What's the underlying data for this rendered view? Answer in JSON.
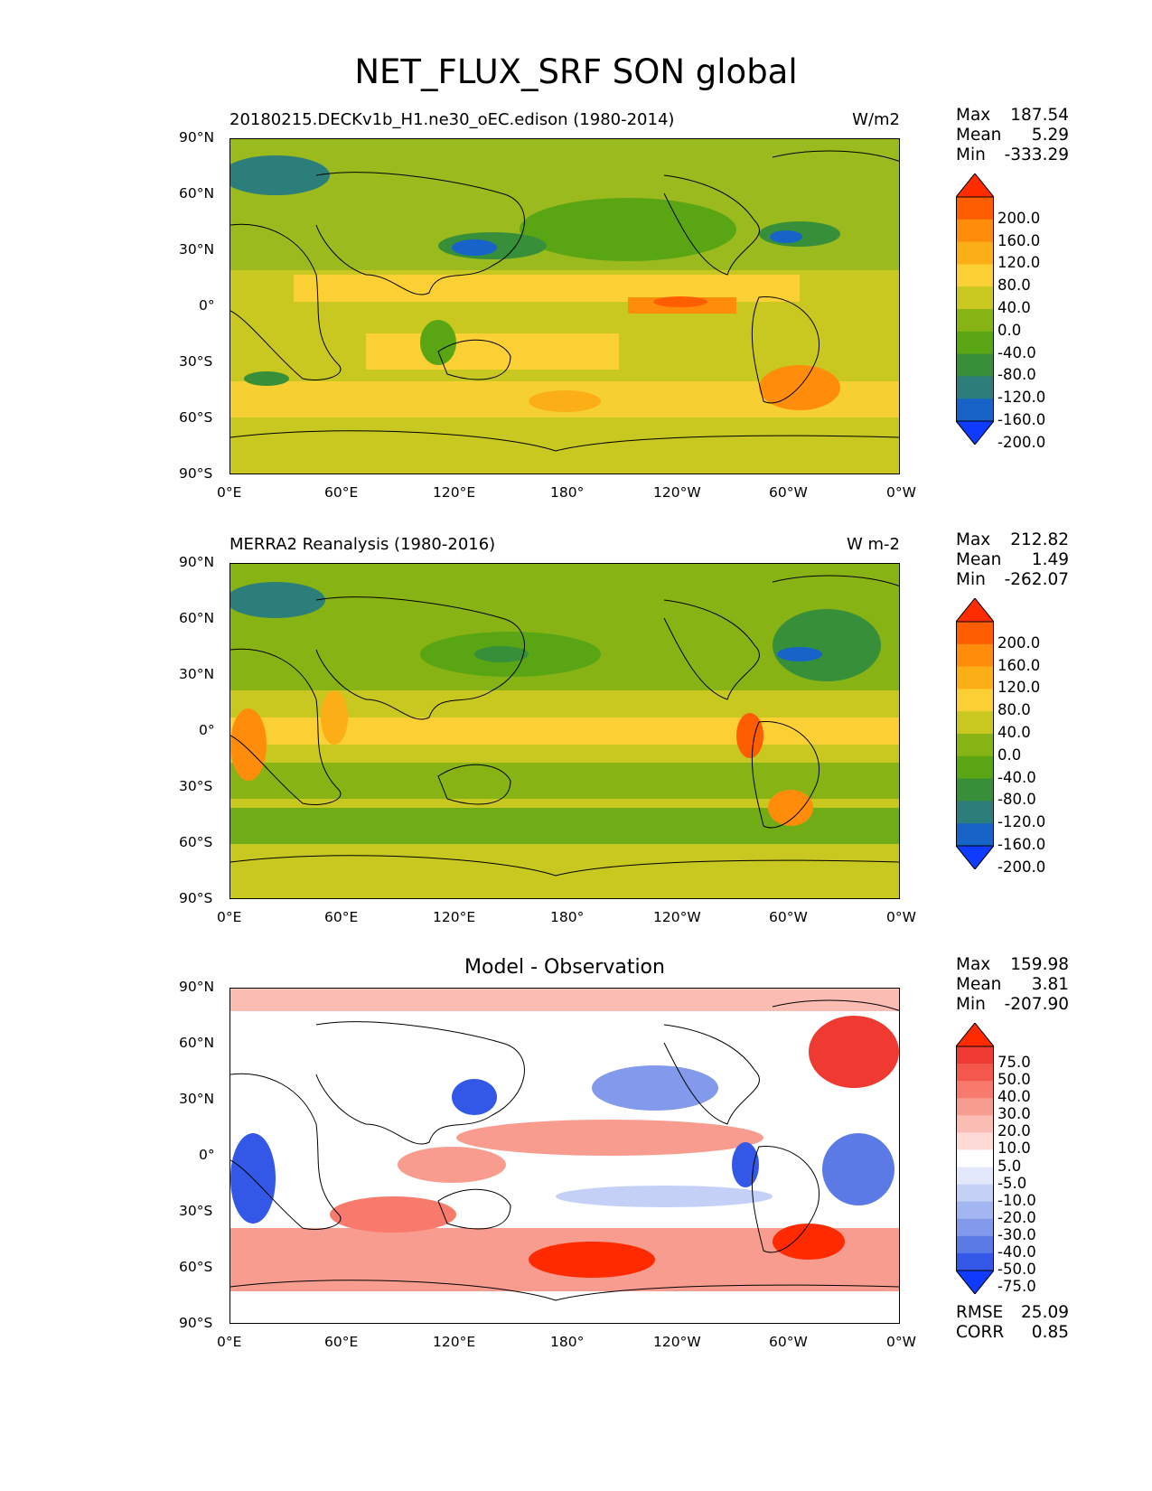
{
  "title": "NET_FLUX_SRF SON global",
  "axes": {
    "lat_ticks": [
      "90°N",
      "60°N",
      "30°N",
      "0°",
      "30°S",
      "60°S",
      "90°S"
    ],
    "lon_ticks": [
      "0°E",
      "60°E",
      "120°E",
      "180°",
      "120°W",
      "60°W",
      "0°W"
    ]
  },
  "panels": [
    {
      "left_title": "20180215.DECKv1b_H1.ne30_oEC.edison (1980-2014)",
      "right_title": "W/m2",
      "center_title": "",
      "stats": {
        "max_label": "Max",
        "max": "187.54",
        "mean_label": "Mean",
        "mean": "5.29",
        "min_label": "Min",
        "min": "-333.29"
      },
      "colorbar_labels": [
        "200.0",
        "160.0",
        "120.0",
        "80.0",
        "40.0",
        "0.0",
        "-40.0",
        "-80.0",
        "-120.0",
        "-160.0",
        "-200.0"
      ],
      "colorbar_colors": [
        "#ff2c00",
        "#ff5e00",
        "#ff8c0b",
        "#fcae16",
        "#fbd034",
        "#c8c820",
        "#87b414",
        "#5aa514",
        "#378f3a",
        "#2b7e79",
        "#1763c8",
        "#0f3bff"
      ]
    },
    {
      "left_title": "MERRA2 Reanalysis (1980-2016)",
      "right_title": "W m-2",
      "center_title": "",
      "stats": {
        "max_label": "Max",
        "max": "212.82",
        "mean_label": "Mean",
        "mean": "1.49",
        "min_label": "Min",
        "min": "-262.07"
      },
      "colorbar_labels": [
        "200.0",
        "160.0",
        "120.0",
        "80.0",
        "40.0",
        "0.0",
        "-40.0",
        "-80.0",
        "-120.0",
        "-160.0",
        "-200.0"
      ],
      "colorbar_colors": [
        "#ff2c00",
        "#ff5e00",
        "#ff8c0b",
        "#fcae16",
        "#fbd034",
        "#c8c820",
        "#87b414",
        "#5aa514",
        "#378f3a",
        "#2b7e79",
        "#1763c8",
        "#0f3bff"
      ]
    },
    {
      "left_title": "",
      "right_title": "",
      "center_title": "Model - Observation",
      "stats": {
        "max_label": "Max",
        "max": "159.98",
        "mean_label": "Mean",
        "mean": "3.81",
        "min_label": "Min",
        "min": "-207.90"
      },
      "colorbar_labels": [
        "75.0",
        "50.0",
        "40.0",
        "30.0",
        "20.0",
        "10.0",
        "5.0",
        "-5.0",
        "-10.0",
        "-20.0",
        "-30.0",
        "-40.0",
        "-50.0",
        "-75.0"
      ],
      "colorbar_colors": [
        "#ff2a00",
        "#ee3a30",
        "#f4584c",
        "#f77a6c",
        "#f99c90",
        "#fbbcb4",
        "#fddad6",
        "#ffffff",
        "#e2e8fa",
        "#c4d0f6",
        "#a4b6f2",
        "#8299ec",
        "#5c7ae6",
        "#3358e8",
        "#0f3bff"
      ],
      "rmse_label": "RMSE",
      "rmse": "25.09",
      "corr_label": "CORR",
      "corr": "0.85"
    }
  ],
  "field_colors": {
    "ocean_base": [
      "#c8c820",
      "#c8c820",
      "#ffffff"
    ],
    "land": [
      "#9bba1e",
      "#87b414",
      "#ffffff"
    ],
    "coast": "#000000"
  }
}
